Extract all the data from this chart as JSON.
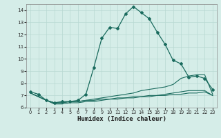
{
  "xlabel": "Humidex (Indice chaleur)",
  "xlim": [
    -0.5,
    23.5
  ],
  "ylim": [
    6,
    14.5
  ],
  "yticks": [
    6,
    7,
    8,
    9,
    10,
    11,
    12,
    13,
    14
  ],
  "xticks": [
    0,
    1,
    2,
    3,
    4,
    5,
    6,
    7,
    8,
    9,
    10,
    11,
    12,
    13,
    14,
    15,
    16,
    17,
    18,
    19,
    20,
    21,
    22,
    23
  ],
  "bg_color": "#d5ede8",
  "grid_color": "#b8d8d2",
  "line_color": "#1a6b5e",
  "line1_x": [
    0,
    1,
    2,
    3,
    4,
    5,
    6,
    7,
    8,
    9,
    10,
    11,
    12,
    13,
    14,
    15,
    16,
    17,
    18,
    19,
    20,
    21,
    22,
    23
  ],
  "line1_y": [
    7.3,
    7.1,
    6.6,
    6.4,
    6.5,
    6.5,
    6.6,
    7.1,
    9.3,
    11.7,
    12.6,
    12.5,
    13.7,
    14.3,
    13.8,
    13.3,
    12.2,
    11.2,
    9.9,
    9.6,
    8.5,
    8.6,
    8.4,
    7.5
  ],
  "line2_x": [
    0,
    1,
    2,
    3,
    4,
    5,
    6,
    7,
    8,
    9,
    10,
    11,
    12,
    13,
    14,
    15,
    16,
    17,
    18,
    19,
    20,
    21,
    22,
    23
  ],
  "line2_y": [
    7.2,
    6.9,
    6.6,
    6.4,
    6.4,
    6.5,
    6.5,
    6.6,
    6.7,
    6.8,
    6.9,
    7.0,
    7.1,
    7.2,
    7.4,
    7.5,
    7.6,
    7.7,
    7.9,
    8.4,
    8.6,
    8.7,
    8.7,
    7.1
  ],
  "line3_x": [
    0,
    1,
    2,
    3,
    4,
    5,
    6,
    7,
    8,
    9,
    10,
    11,
    12,
    13,
    14,
    15,
    16,
    17,
    18,
    19,
    20,
    21,
    22,
    23
  ],
  "line3_y": [
    7.2,
    6.9,
    6.6,
    6.3,
    6.3,
    6.4,
    6.4,
    6.5,
    6.5,
    6.6,
    6.7,
    6.7,
    6.8,
    6.8,
    6.9,
    6.9,
    7.0,
    7.0,
    7.1,
    7.1,
    7.2,
    7.2,
    7.3,
    7.0
  ],
  "line4_x": [
    0,
    1,
    2,
    3,
    4,
    5,
    6,
    7,
    8,
    9,
    10,
    11,
    12,
    13,
    14,
    15,
    16,
    17,
    18,
    19,
    20,
    21,
    22,
    23
  ],
  "line4_y": [
    7.2,
    6.9,
    6.6,
    6.4,
    6.4,
    6.5,
    6.5,
    6.6,
    6.6,
    6.7,
    6.7,
    6.8,
    6.8,
    6.9,
    6.9,
    7.0,
    7.0,
    7.1,
    7.2,
    7.3,
    7.4,
    7.4,
    7.4,
    7.0
  ]
}
